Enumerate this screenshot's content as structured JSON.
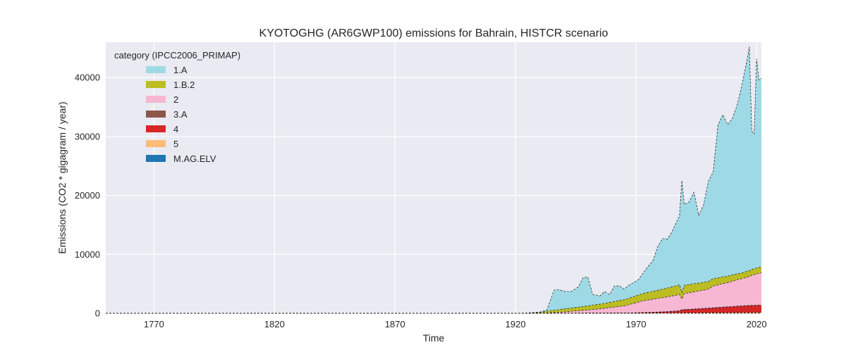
{
  "chart_data": {
    "type": "area",
    "title": "KYOTOGHG (AR6GWP100) emissions for Bahrain, HISTCR scenario",
    "xlabel": "Time",
    "ylabel": "Emissions (CO2 * gigagram / year)",
    "xlim": [
      1750,
      2022
    ],
    "ylim": [
      0,
      46000
    ],
    "xticks": [
      1770,
      1820,
      1870,
      1920,
      1970,
      2020
    ],
    "yticks": [
      0,
      10000,
      20000,
      30000,
      40000
    ],
    "grid": true,
    "legend": {
      "title": "category (IPCC2006_PRIMAP)",
      "placement": "top-left"
    },
    "x": [
      1750,
      1920,
      1925,
      1930,
      1933,
      1936,
      1938,
      1940,
      1943,
      1946,
      1948,
      1950,
      1952,
      1955,
      1957,
      1959,
      1961,
      1963,
      1965,
      1967,
      1969,
      1971,
      1973,
      1975,
      1977,
      1979,
      1981,
      1983,
      1985,
      1987,
      1988,
      1989,
      1990,
      1992,
      1994,
      1996,
      1998,
      2000,
      2002,
      2004,
      2006,
      2008,
      2010,
      2012,
      2014,
      2016,
      2017,
      2018,
      2019,
      2020,
      2021,
      2022
    ],
    "series": [
      {
        "name": "M.AG.ELV",
        "color": "#1f77b4",
        "values": [
          0,
          0,
          0,
          0,
          0,
          0,
          0,
          0,
          0,
          0,
          0,
          0,
          0,
          0,
          0,
          0,
          0,
          0,
          0,
          0,
          0,
          0,
          0,
          0,
          0,
          0,
          0,
          0,
          0,
          0,
          0,
          0,
          0,
          0,
          0,
          0,
          0,
          0,
          0,
          0,
          0,
          0,
          0,
          0,
          0,
          0,
          0,
          0,
          0,
          0,
          0,
          0
        ]
      },
      {
        "name": "5",
        "color": "#ffbb78",
        "values": [
          0,
          0,
          0,
          0,
          0,
          0,
          0,
          0,
          0,
          0,
          0,
          0,
          0,
          0,
          0,
          0,
          0,
          0,
          0,
          0,
          5,
          10,
          15,
          20,
          25,
          30,
          35,
          40,
          45,
          50,
          55,
          60,
          65,
          70,
          75,
          80,
          85,
          90,
          95,
          100,
          105,
          110,
          115,
          120,
          125,
          130,
          130,
          135,
          135,
          140,
          140,
          140
        ]
      },
      {
        "name": "4",
        "color": "#d62728",
        "values": [
          0,
          0,
          0,
          0,
          0,
          0,
          0,
          0,
          0,
          0,
          0,
          0,
          0,
          0,
          0,
          0,
          0,
          0,
          0,
          0,
          20,
          40,
          60,
          80,
          100,
          130,
          160,
          200,
          250,
          300,
          330,
          500,
          530,
          560,
          600,
          650,
          700,
          750,
          800,
          850,
          900,
          950,
          1000,
          1050,
          1100,
          1150,
          1160,
          1170,
          1180,
          1200,
          1210,
          1220
        ]
      },
      {
        "name": "3.A",
        "color": "#8c564b",
        "values": [
          0,
          0,
          0,
          0,
          10,
          20,
          25,
          30,
          35,
          40,
          40,
          45,
          45,
          50,
          50,
          55,
          55,
          55,
          55,
          55,
          55,
          55,
          55,
          55,
          55,
          55,
          55,
          50,
          50,
          50,
          50,
          50,
          50,
          50,
          50,
          45,
          45,
          45,
          45,
          45,
          45,
          40,
          40,
          40,
          40,
          40,
          40,
          40,
          40,
          40,
          40,
          40
        ]
      },
      {
        "name": "2",
        "color": "#f7b6d2",
        "values": [
          0,
          0,
          0,
          0,
          50,
          100,
          150,
          200,
          300,
          400,
          450,
          500,
          600,
          700,
          800,
          900,
          1000,
          1100,
          1200,
          1400,
          1600,
          1800,
          2000,
          2100,
          2200,
          2300,
          2400,
          2500,
          2600,
          2700,
          2800,
          1800,
          2700,
          2800,
          2900,
          3000,
          3100,
          3200,
          3700,
          3800,
          4000,
          4100,
          4300,
          4500,
          4600,
          4800,
          4900,
          5100,
          5200,
          5300,
          5400,
          5500
        ]
      },
      {
        "name": "1.B.2",
        "color": "#bcbd22",
        "values": [
          0,
          0,
          30,
          100,
          300,
          400,
          450,
          500,
          550,
          600,
          650,
          700,
          750,
          800,
          850,
          900,
          950,
          1000,
          1050,
          1100,
          1150,
          1200,
          1250,
          1300,
          1350,
          1400,
          1450,
          1500,
          1550,
          1600,
          1650,
          1100,
          1400,
          1400,
          1400,
          1350,
          1350,
          1300,
          1250,
          1200,
          1150,
          1100,
          1050,
          1000,
          1000,
          1000,
          1000,
          1000,
          1000,
          1000,
          1000,
          1000
        ]
      },
      {
        "name": "1.A",
        "color": "#9edae5",
        "values": [
          0,
          0,
          20,
          100,
          200,
          3400,
          3400,
          3000,
          2800,
          3400,
          4900,
          4900,
          1800,
          1400,
          2000,
          1300,
          2600,
          2500,
          1800,
          2200,
          2400,
          2600,
          3500,
          4400,
          5200,
          7400,
          8600,
          8300,
          9400,
          11000,
          11600,
          19000,
          13700,
          14000,
          15500,
          11500,
          13100,
          17000,
          18100,
          26000,
          27500,
          25700,
          26600,
          28700,
          32000,
          35800,
          38000,
          23500,
          22900,
          35500,
          31800,
          32000
        ]
      }
    ],
    "total_line_values": [
      0,
      0,
      50,
      200,
      560,
      3920,
      4025,
      3730,
      3685,
      4440,
      6040,
      6145,
      3195,
      2950,
      3700,
      3155,
      4605,
      4655,
      4105,
      4755,
      5230,
      5705,
      6880,
      7955,
      8930,
      11315,
      12700,
      12590,
      13895,
      15700,
      16485,
      22510,
      18445,
      18880,
      20525,
      16625,
      18380,
      22385,
      23990,
      32195,
      33700,
      32000,
      33105,
      35410,
      38865,
      42920,
      45230,
      30845,
      30655,
      43180,
      39990,
      40100
    ]
  }
}
